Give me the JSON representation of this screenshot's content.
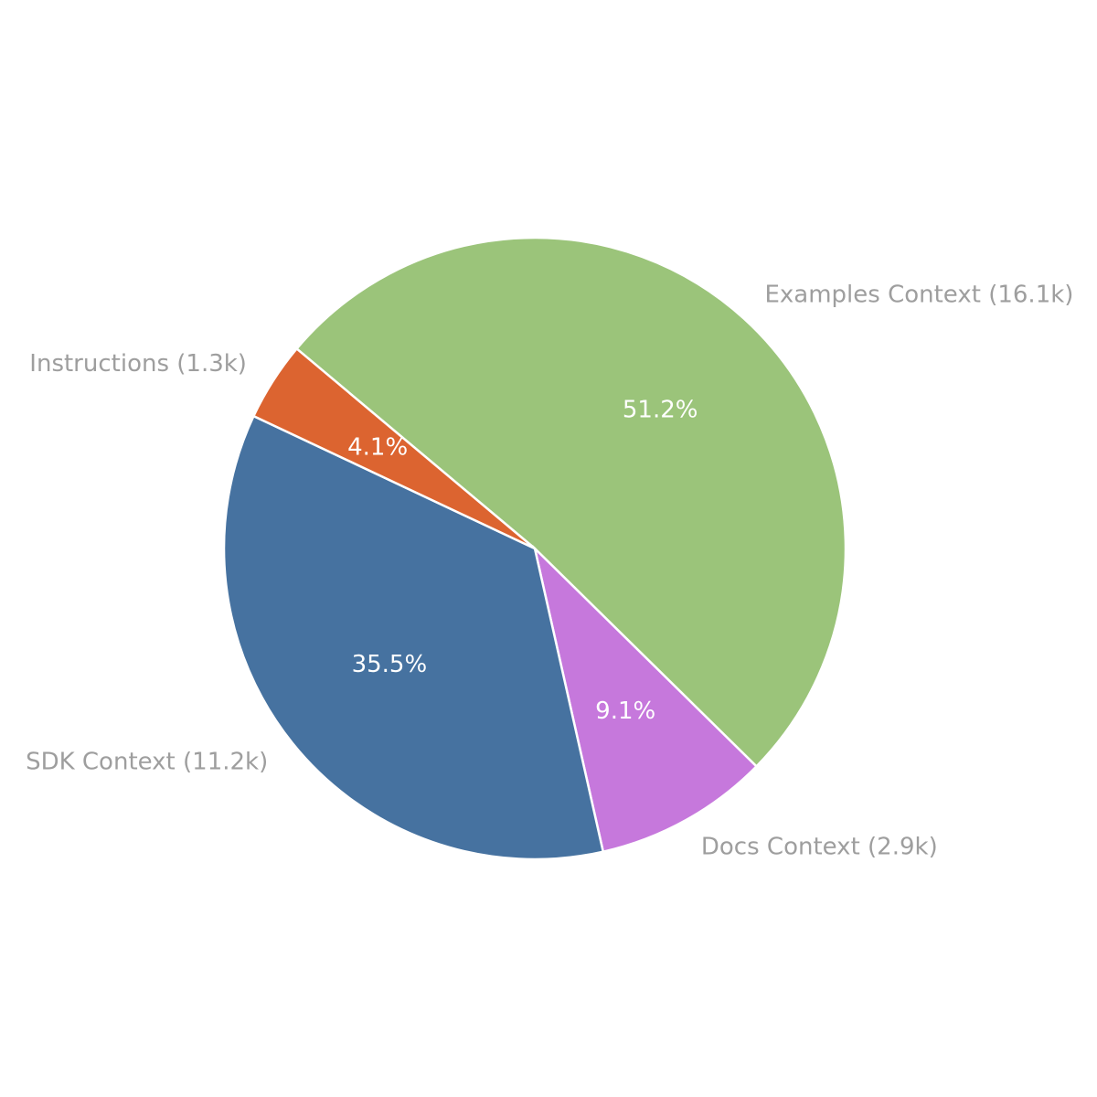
{
  "chart_data": {
    "type": "pie",
    "categories": [
      "Examples Context (16.1k)",
      "Docs Context (2.9k)",
      "SDK Context (11.2k)",
      "Instructions (1.3k)"
    ],
    "values": [
      51.2,
      9.1,
      35.5,
      4.1
    ],
    "value_labels": [
      "51.2%",
      "9.1%",
      "35.5%",
      "4.1%"
    ],
    "colors": [
      "#9bc47a",
      "#c678dc",
      "#4672a0",
      "#dc6430"
    ]
  }
}
